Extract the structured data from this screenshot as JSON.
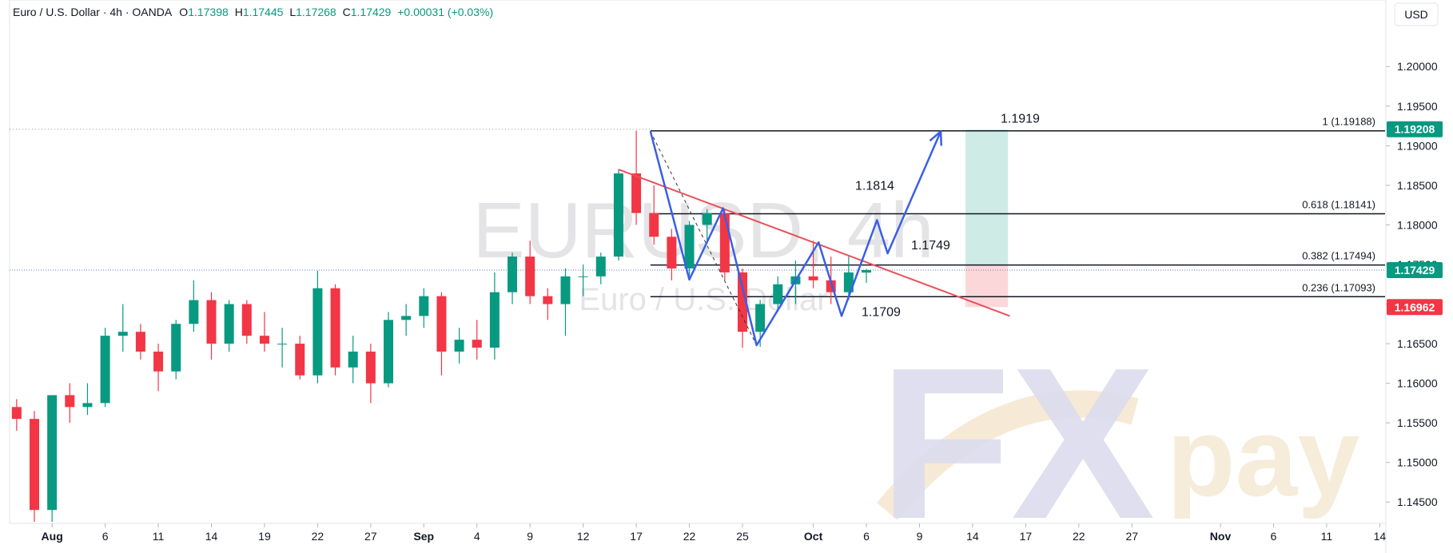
{
  "chart_data": {
    "type": "candlestick",
    "header": {
      "title": "Euro / U.S. Dollar · 4h · OANDA",
      "ohlc_labels": [
        "O",
        "H",
        "L",
        "C"
      ],
      "open": 1.17398,
      "high": 1.17445,
      "low": 1.17268,
      "close": 1.17429,
      "change": "+0.00031 (+0.03%)"
    },
    "currency": "USD",
    "watermark": [
      "EURUSD, 4h",
      "Euro / U.S. Dollar"
    ],
    "logo": [
      "FX",
      "pay"
    ],
    "up_color": "#089981",
    "down_color": "#f23645",
    "x": [
      -2,
      -1,
      0,
      1,
      2,
      3,
      4,
      5,
      6,
      7,
      8,
      9,
      10,
      11,
      12,
      13,
      14,
      15,
      16,
      17,
      18,
      19,
      20,
      21,
      22,
      23,
      24,
      25,
      26,
      27,
      28,
      29,
      30,
      31,
      32,
      33,
      34,
      35,
      36,
      37,
      38,
      39,
      40,
      41,
      42,
      43,
      44,
      45,
      46
    ],
    "open": [
      1.157,
      1.1555,
      1.144,
      1.1585,
      1.157,
      1.1575,
      1.166,
      1.1665,
      1.164,
      1.1615,
      1.1675,
      1.1705,
      1.165,
      1.17,
      1.166,
      1.165,
      1.165,
      1.161,
      1.172,
      1.162,
      1.164,
      1.16,
      1.168,
      1.1685,
      1.171,
      1.164,
      1.1655,
      1.1645,
      1.1715,
      1.176,
      1.171,
      1.17,
      1.1735,
      1.1735,
      1.176,
      1.1865,
      1.1815,
      1.1785,
      1.1745,
      1.18,
      1.1815,
      1.174,
      1.1665,
      1.17,
      1.1725,
      1.1735,
      1.173,
      1.1715,
      1.17398
    ],
    "high": [
      1.158,
      1.1565,
      1.1585,
      1.16,
      1.16,
      1.167,
      1.17,
      1.1675,
      1.165,
      1.168,
      1.173,
      1.1715,
      1.1705,
      1.1705,
      1.169,
      1.167,
      1.166,
      1.1742,
      1.1725,
      1.166,
      1.165,
      1.169,
      1.17,
      1.172,
      1.1715,
      1.167,
      1.168,
      1.174,
      1.1765,
      1.178,
      1.172,
      1.1745,
      1.175,
      1.1765,
      1.187,
      1.1919,
      1.185,
      1.1795,
      1.1805,
      1.182,
      1.182,
      1.1745,
      1.1705,
      1.1735,
      1.1755,
      1.178,
      1.176,
      1.176,
      1.17445
    ],
    "low": [
      1.154,
      1.1425,
      1.1425,
      1.155,
      1.156,
      1.157,
      1.164,
      1.163,
      1.159,
      1.1605,
      1.1665,
      1.163,
      1.164,
      1.165,
      1.164,
      1.162,
      1.1605,
      1.16,
      1.161,
      1.16,
      1.1575,
      1.1595,
      1.166,
      1.167,
      1.161,
      1.1625,
      1.163,
      1.163,
      1.17,
      1.17,
      1.168,
      1.166,
      1.171,
      1.1725,
      1.1755,
      1.18,
      1.1775,
      1.173,
      1.1735,
      1.178,
      1.173,
      1.1645,
      1.1646,
      1.169,
      1.17,
      1.172,
      1.17,
      1.1705,
      1.17268
    ],
    "close": [
      1.1555,
      1.144,
      1.1585,
      1.157,
      1.1575,
      1.166,
      1.1665,
      1.164,
      1.1615,
      1.1675,
      1.1705,
      1.165,
      1.17,
      1.166,
      1.165,
      1.165,
      1.161,
      1.172,
      1.162,
      1.164,
      1.16,
      1.168,
      1.1685,
      1.171,
      1.164,
      1.1655,
      1.1645,
      1.1715,
      1.176,
      1.171,
      1.17,
      1.1735,
      1.1735,
      1.176,
      1.1865,
      1.1815,
      1.1785,
      1.1745,
      1.18,
      1.1815,
      1.174,
      1.1665,
      1.17,
      1.1725,
      1.1735,
      1.173,
      1.1715,
      1.174,
      1.17429
    ],
    "xlim": [
      -2.4,
      75.3
    ],
    "ylim": [
      1.1423,
      1.2084
    ],
    "xticks": [
      {
        "value": 0,
        "label": "Aug"
      },
      {
        "value": 3,
        "label": "6"
      },
      {
        "value": 6,
        "label": "11"
      },
      {
        "value": 9,
        "label": "14"
      },
      {
        "value": 12,
        "label": "19"
      },
      {
        "value": 15,
        "label": "22"
      },
      {
        "value": 18,
        "label": "27"
      },
      {
        "value": 21,
        "label": "Sep"
      },
      {
        "value": 24,
        "label": "4"
      },
      {
        "value": 27,
        "label": "9"
      },
      {
        "value": 30,
        "label": "12"
      },
      {
        "value": 33,
        "label": "17"
      },
      {
        "value": 36,
        "label": "22"
      },
      {
        "value": 39,
        "label": "25"
      },
      {
        "value": 43,
        "label": "Oct"
      },
      {
        "value": 46,
        "label": "6"
      },
      {
        "value": 49,
        "label": "9"
      },
      {
        "value": 52,
        "label": "14"
      },
      {
        "value": 55,
        "label": "17"
      },
      {
        "value": 58,
        "label": "22"
      },
      {
        "value": 61,
        "label": "27"
      },
      {
        "value": 66,
        "label": "Nov"
      },
      {
        "value": 69,
        "label": "6"
      },
      {
        "value": 72,
        "label": "11"
      },
      {
        "value": 75,
        "label": "14"
      }
    ],
    "yticks": [
      {
        "value": 1.145,
        "label": "1.14500"
      },
      {
        "value": 1.15,
        "label": "1.15000"
      },
      {
        "value": 1.155,
        "label": "1.15500"
      },
      {
        "value": 1.16,
        "label": "1.16000"
      },
      {
        "value": 1.165,
        "label": "1.16500"
      },
      {
        "value": 1.17,
        "label": "1.17000"
      },
      {
        "value": 1.175,
        "label": "1.17500"
      },
      {
        "value": 1.18,
        "label": "1.18000"
      },
      {
        "value": 1.185,
        "label": "1.18500"
      },
      {
        "value": 1.19,
        "label": "1.19000"
      },
      {
        "value": 1.195,
        "label": "1.19500"
      },
      {
        "value": 1.2,
        "label": "1.20000"
      }
    ],
    "fib": {
      "start": 33.8,
      "levels": [
        {
          "value": 1.19188,
          "label": "1 (1.19188)"
        },
        {
          "value": 1.18141,
          "label": "0.618 (1.18141)"
        },
        {
          "value": 1.17494,
          "label": "0.382 (1.17494)"
        },
        {
          "value": 1.17093,
          "label": "0.236 (1.17093)"
        }
      ]
    },
    "fib_diagonal": {
      "x": [
        33.8,
        39.8
      ],
      "y": [
        1.19182,
        1.1648
      ]
    },
    "projection": {
      "color": "#3a5fe5",
      "x": [
        33.8,
        36.0,
        37.9,
        39.8,
        43.3,
        44.6,
        46.6,
        47.2,
        50.2
      ],
      "y": [
        1.19182,
        1.17309,
        1.1821,
        1.1648,
        1.1778,
        1.1685,
        1.1806,
        1.1764,
        1.1918
      ]
    },
    "trendline": {
      "color": "#e8505b",
      "x": [
        32.0,
        54.1
      ],
      "y": [
        1.187,
        1.1685
      ]
    },
    "position": {
      "x": [
        51.6,
        54.0
      ],
      "target": 1.19208,
      "entry": 1.17494,
      "stop": 1.16962
    },
    "annotations": [
      1.1919,
      1.1814,
      1.1749,
      1.1709
    ]
  }
}
